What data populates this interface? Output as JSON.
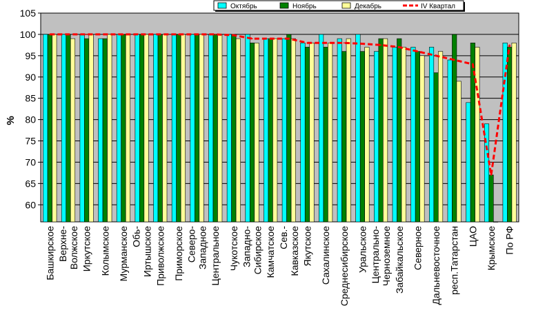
{
  "chart_data": {
    "type": "bar",
    "title": "",
    "xlabel": "",
    "ylabel": "%",
    "ylim": [
      56,
      105
    ],
    "yticks": [
      60,
      65,
      70,
      75,
      80,
      85,
      90,
      95,
      100,
      105
    ],
    "grid": true,
    "legend_position": "top-right",
    "background_color": "#c0c0c0",
    "categories": [
      "Башкирское",
      "Верхне-Волжское",
      "Иркутское",
      "Колымское",
      "Мурманское",
      "Обь-Иртышское",
      "Приволжское",
      "Приморское",
      "Северо-Западное",
      "Центральное",
      "Чукотское",
      "Западно-Сибирское",
      "Камчатское",
      "Сев.-Кавказское",
      "Якутское",
      "Сахалинское",
      "Среднесибирское",
      "Уральское",
      "Центрально-Черноземное",
      "Забайкальское",
      "Северное",
      "Дальневосточное",
      "респ.Татарстан",
      "ЦАО",
      "Крымское",
      "По РФ"
    ],
    "category_lines": [
      [
        "Башкирское"
      ],
      [
        "Верхне-",
        "Волжское"
      ],
      [
        "Иркутское"
      ],
      [
        "Колымское"
      ],
      [
        "Мурманское"
      ],
      [
        "Обь-",
        "Иртышское"
      ],
      [
        "Приволжское"
      ],
      [
        "Приморское"
      ],
      [
        "Северо-",
        "Западное"
      ],
      [
        "Центральное"
      ],
      [
        "Чукотское"
      ],
      [
        "Западно-",
        "Сибирское"
      ],
      [
        "Камчатское"
      ],
      [
        "Сев.-",
        "Кавказское"
      ],
      [
        "Якутское"
      ],
      [
        "Сахалинское"
      ],
      [
        "Среднесибирское"
      ],
      [
        "Уральское"
      ],
      [
        "Центрально-",
        "Черноземное"
      ],
      [
        "Забайкальское"
      ],
      [
        "Северное"
      ],
      [
        "Дальневосточное"
      ],
      [
        "респ.Татарстан"
      ],
      [
        "ЦАО"
      ],
      [
        "Крымское"
      ],
      [
        "По РФ"
      ]
    ],
    "series": [
      {
        "name": "Октябрь",
        "color": "#00ffff",
        "values": [
          100,
          100,
          100,
          99,
          100,
          100,
          100,
          100,
          100,
          100,
          100,
          100,
          99,
          99,
          98,
          100,
          99,
          100,
          96,
          97,
          97,
          97,
          94,
          84,
          79,
          98
        ]
      },
      {
        "name": "Ноябрь",
        "color": "#008000",
        "values": [
          100,
          100,
          99,
          99,
          100,
          100,
          100,
          100,
          100,
          100,
          100,
          98,
          99,
          100,
          97,
          97,
          96,
          96,
          99,
          99,
          96,
          91,
          100,
          98,
          67,
          97
        ]
      },
      {
        "name": "Декабрь",
        "color": "#ffff99",
        "values": [
          100,
          99,
          100,
          100,
          100,
          100,
          100,
          100,
          100,
          100,
          99,
          98,
          99,
          99,
          98,
          98,
          99,
          97,
          99,
          97,
          95,
          96,
          89,
          97,
          56,
          98
        ]
      }
    ],
    "line_series": {
      "name": "IV Квартал",
      "color": "#ff0000",
      "style": "dashed",
      "values": [
        100,
        100,
        100,
        100,
        100,
        100,
        100,
        100,
        100,
        100,
        99.8,
        99,
        99,
        99,
        98,
        98,
        98,
        97.8,
        97.5,
        97,
        96,
        95,
        94,
        93,
        67,
        97.5
      ]
    }
  }
}
